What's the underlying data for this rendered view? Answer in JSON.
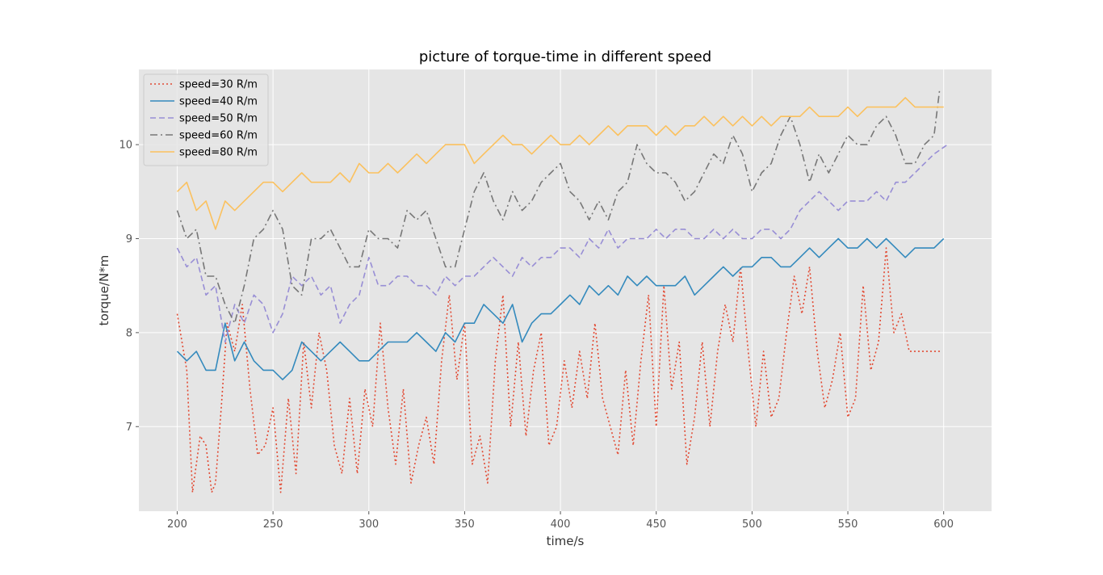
{
  "chart_data": {
    "type": "line",
    "title": "picture of torque-time in different speed",
    "xlabel": "time/s",
    "ylabel": "torque/N*m",
    "xlim": [
      180,
      625
    ],
    "ylim": [
      6.1,
      10.8
    ],
    "xticks": [
      200,
      250,
      300,
      350,
      400,
      450,
      500,
      550,
      600
    ],
    "yticks": [
      7,
      8,
      9,
      10
    ],
    "grid": true,
    "legend_position": "top-left",
    "background": "#e5e5e5",
    "series": [
      {
        "name": "speed=30 R/m",
        "color": "#e24a33",
        "style": "dotted",
        "x": [
          200,
          205,
          208,
          212,
          215,
          218,
          220,
          223,
          226,
          230,
          234,
          238,
          242,
          246,
          250,
          254,
          258,
          262,
          266,
          270,
          274,
          278,
          282,
          286,
          290,
          294,
          298,
          302,
          306,
          310,
          314,
          318,
          322,
          326,
          330,
          334,
          338,
          342,
          346,
          350,
          354,
          358,
          362,
          366,
          370,
          374,
          378,
          382,
          386,
          390,
          394,
          398,
          402,
          406,
          410,
          414,
          418,
          422,
          426,
          430,
          434,
          438,
          442,
          446,
          450,
          454,
          458,
          462,
          466,
          470,
          474,
          478,
          482,
          486,
          490,
          494,
          498,
          502,
          506,
          510,
          514,
          518,
          522,
          526,
          530,
          534,
          538,
          542,
          546,
          550,
          554,
          558,
          562,
          566,
          570,
          574,
          578,
          582,
          586,
          590,
          594,
          598
        ],
        "y": [
          8.2,
          7.6,
          6.3,
          6.9,
          6.8,
          6.3,
          6.4,
          7.2,
          8.1,
          7.8,
          8.3,
          7.4,
          6.7,
          6.8,
          7.2,
          6.3,
          7.3,
          6.5,
          7.9,
          7.2,
          8.0,
          7.6,
          6.8,
          6.5,
          7.3,
          6.5,
          7.4,
          7.0,
          8.1,
          7.2,
          6.6,
          7.4,
          6.4,
          6.8,
          7.1,
          6.6,
          7.7,
          8.4,
          7.5,
          8.1,
          6.6,
          6.9,
          6.4,
          7.7,
          8.4,
          7.0,
          7.9,
          6.9,
          7.6,
          8.0,
          6.8,
          7.0,
          7.7,
          7.2,
          7.8,
          7.3,
          8.1,
          7.3,
          7.0,
          6.7,
          7.6,
          6.8,
          7.7,
          8.4,
          7.0,
          8.5,
          7.4,
          7.9,
          6.6,
          7.1,
          7.9,
          7.0,
          7.8,
          8.3,
          7.9,
          8.7,
          7.8,
          7.0,
          7.8,
          7.1,
          7.3,
          8.0,
          8.6,
          8.2,
          8.7,
          7.8,
          7.2,
          7.5,
          8.0,
          7.1,
          7.3,
          8.5,
          7.6,
          7.9,
          8.9,
          8.0,
          8.2,
          7.8,
          7.8,
          7.8,
          7.8,
          7.8
        ]
      },
      {
        "name": "speed=40 R/m",
        "color": "#348abd",
        "style": "solid",
        "x": [
          200,
          205,
          210,
          215,
          220,
          225,
          230,
          235,
          240,
          245,
          250,
          255,
          260,
          265,
          270,
          275,
          280,
          285,
          290,
          295,
          300,
          305,
          310,
          315,
          320,
          325,
          330,
          335,
          340,
          345,
          350,
          355,
          360,
          365,
          370,
          375,
          380,
          385,
          390,
          395,
          400,
          405,
          410,
          415,
          420,
          425,
          430,
          435,
          440,
          445,
          450,
          455,
          460,
          465,
          470,
          475,
          480,
          485,
          490,
          495,
          500,
          505,
          510,
          515,
          520,
          525,
          530,
          535,
          540,
          545,
          550,
          555,
          560,
          565,
          570,
          575,
          580,
          585,
          590,
          595,
          600
        ],
        "y": [
          7.8,
          7.7,
          7.8,
          7.6,
          7.6,
          8.1,
          7.7,
          7.9,
          7.7,
          7.6,
          7.6,
          7.5,
          7.6,
          7.9,
          7.8,
          7.7,
          7.8,
          7.9,
          7.8,
          7.7,
          7.7,
          7.8,
          7.9,
          7.9,
          7.9,
          8.0,
          7.9,
          7.8,
          8.0,
          7.9,
          8.1,
          8.1,
          8.3,
          8.2,
          8.1,
          8.3,
          7.9,
          8.1,
          8.2,
          8.2,
          8.3,
          8.4,
          8.3,
          8.5,
          8.4,
          8.5,
          8.4,
          8.6,
          8.5,
          8.6,
          8.5,
          8.5,
          8.5,
          8.6,
          8.4,
          8.5,
          8.6,
          8.7,
          8.6,
          8.7,
          8.7,
          8.8,
          8.8,
          8.7,
          8.7,
          8.8,
          8.9,
          8.8,
          8.9,
          9.0,
          8.9,
          8.9,
          9.0,
          8.9,
          9.0,
          8.9,
          8.8,
          8.9,
          8.9,
          8.9,
          9.0
        ]
      },
      {
        "name": "speed=50 R/m",
        "color": "#988ed5",
        "style": "dashed",
        "x": [
          200,
          205,
          210,
          215,
          220,
          225,
          230,
          235,
          240,
          245,
          250,
          255,
          260,
          265,
          270,
          275,
          280,
          285,
          290,
          295,
          300,
          305,
          310,
          315,
          320,
          325,
          330,
          335,
          340,
          345,
          350,
          355,
          360,
          365,
          370,
          375,
          380,
          385,
          390,
          395,
          400,
          405,
          410,
          415,
          420,
          425,
          430,
          435,
          440,
          445,
          450,
          455,
          460,
          465,
          470,
          475,
          480,
          485,
          490,
          495,
          500,
          505,
          510,
          515,
          520,
          525,
          530,
          535,
          540,
          545,
          550,
          555,
          560,
          565,
          570,
          575,
          580,
          585,
          590,
          595,
          602
        ],
        "y": [
          8.9,
          8.7,
          8.8,
          8.4,
          8.5,
          7.9,
          8.3,
          8.1,
          8.4,
          8.3,
          8.0,
          8.2,
          8.6,
          8.5,
          8.6,
          8.4,
          8.5,
          8.1,
          8.3,
          8.4,
          8.8,
          8.5,
          8.5,
          8.6,
          8.6,
          8.5,
          8.5,
          8.4,
          8.6,
          8.5,
          8.6,
          8.6,
          8.7,
          8.8,
          8.7,
          8.6,
          8.8,
          8.7,
          8.8,
          8.8,
          8.9,
          8.9,
          8.8,
          9.0,
          8.9,
          9.1,
          8.9,
          9.0,
          9.0,
          9.0,
          9.1,
          9.0,
          9.1,
          9.1,
          9.0,
          9.0,
          9.1,
          9.0,
          9.1,
          9.0,
          9.0,
          9.1,
          9.1,
          9.0,
          9.1,
          9.3,
          9.4,
          9.5,
          9.4,
          9.3,
          9.4,
          9.4,
          9.4,
          9.5,
          9.4,
          9.6,
          9.6,
          9.7,
          9.8,
          9.9,
          10.0
        ]
      },
      {
        "name": "speed=60 R/m",
        "color": "#777777",
        "style": "dashdot",
        "x": [
          200,
          205,
          210,
          215,
          220,
          225,
          230,
          235,
          240,
          245,
          250,
          255,
          260,
          265,
          270,
          275,
          280,
          285,
          290,
          295,
          300,
          305,
          310,
          315,
          320,
          325,
          330,
          335,
          340,
          345,
          350,
          355,
          360,
          365,
          370,
          375,
          380,
          385,
          390,
          395,
          400,
          405,
          410,
          415,
          420,
          425,
          430,
          435,
          440,
          445,
          450,
          455,
          460,
          465,
          470,
          475,
          480,
          485,
          490,
          495,
          500,
          505,
          510,
          515,
          520,
          525,
          530,
          535,
          540,
          545,
          550,
          555,
          560,
          565,
          570,
          575,
          580,
          585,
          590,
          595,
          598
        ],
        "y": [
          9.3,
          9.0,
          9.1,
          8.6,
          8.6,
          8.3,
          8.1,
          8.5,
          9.0,
          9.1,
          9.3,
          9.1,
          8.5,
          8.4,
          9.0,
          9.0,
          9.1,
          8.9,
          8.7,
          8.7,
          9.1,
          9.0,
          9.0,
          8.9,
          9.3,
          9.2,
          9.3,
          9.0,
          8.7,
          8.7,
          9.1,
          9.5,
          9.7,
          9.4,
          9.2,
          9.5,
          9.3,
          9.4,
          9.6,
          9.7,
          9.8,
          9.5,
          9.4,
          9.2,
          9.4,
          9.2,
          9.5,
          9.6,
          10.0,
          9.8,
          9.7,
          9.7,
          9.6,
          9.4,
          9.5,
          9.7,
          9.9,
          9.8,
          10.1,
          9.9,
          9.5,
          9.7,
          9.8,
          10.1,
          10.3,
          10.0,
          9.6,
          9.9,
          9.7,
          9.9,
          10.1,
          10.0,
          10.0,
          10.2,
          10.3,
          10.1,
          9.8,
          9.8,
          10.0,
          10.1,
          10.6
        ]
      },
      {
        "name": "speed=80 R/m",
        "color": "#fbc15e",
        "style": "solid",
        "x": [
          200,
          205,
          210,
          215,
          220,
          225,
          230,
          235,
          240,
          245,
          250,
          255,
          260,
          265,
          270,
          275,
          280,
          285,
          290,
          295,
          300,
          305,
          310,
          315,
          320,
          325,
          330,
          335,
          340,
          345,
          350,
          355,
          360,
          365,
          370,
          375,
          380,
          385,
          390,
          395,
          400,
          405,
          410,
          415,
          420,
          425,
          430,
          435,
          440,
          445,
          450,
          455,
          460,
          465,
          470,
          475,
          480,
          485,
          490,
          495,
          500,
          505,
          510,
          515,
          520,
          525,
          530,
          535,
          540,
          545,
          550,
          555,
          560,
          565,
          570,
          575,
          580,
          585,
          590,
          595,
          600
        ],
        "y": [
          9.5,
          9.6,
          9.3,
          9.4,
          9.1,
          9.4,
          9.3,
          9.4,
          9.5,
          9.6,
          9.6,
          9.5,
          9.6,
          9.7,
          9.6,
          9.6,
          9.6,
          9.7,
          9.6,
          9.8,
          9.7,
          9.7,
          9.8,
          9.7,
          9.8,
          9.9,
          9.8,
          9.9,
          10.0,
          10.0,
          10.0,
          9.8,
          9.9,
          10.0,
          10.1,
          10.0,
          10.0,
          9.9,
          10.0,
          10.1,
          10.0,
          10.0,
          10.1,
          10.0,
          10.1,
          10.2,
          10.1,
          10.2,
          10.2,
          10.2,
          10.1,
          10.2,
          10.1,
          10.2,
          10.2,
          10.3,
          10.2,
          10.3,
          10.2,
          10.3,
          10.2,
          10.3,
          10.2,
          10.3,
          10.3,
          10.3,
          10.4,
          10.3,
          10.3,
          10.3,
          10.4,
          10.3,
          10.4,
          10.4,
          10.4,
          10.4,
          10.5,
          10.4,
          10.4,
          10.4,
          10.4
        ]
      }
    ]
  }
}
